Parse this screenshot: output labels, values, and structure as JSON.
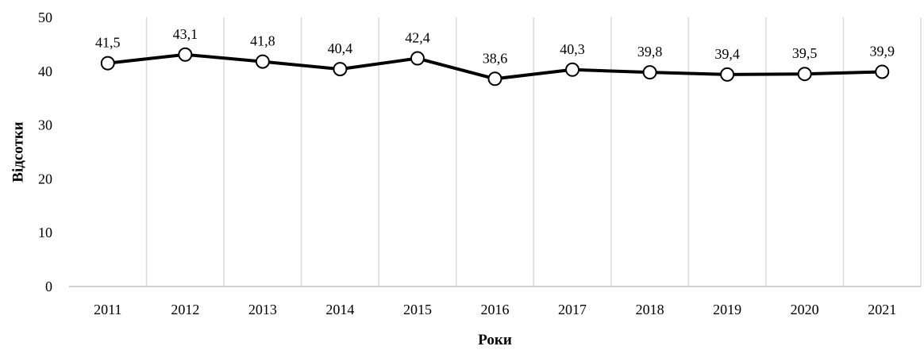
{
  "chart_data": {
    "type": "line",
    "categories": [
      "2011",
      "2012",
      "2013",
      "2014",
      "2015",
      "2016",
      "2017",
      "2018",
      "2019",
      "2020",
      "2021"
    ],
    "values": [
      41.5,
      43.1,
      41.8,
      40.4,
      42.4,
      38.6,
      40.3,
      39.8,
      39.4,
      39.5,
      39.9
    ],
    "data_labels": [
      "41,5",
      "43,1",
      "41,8",
      "40,4",
      "42,4",
      "38,6",
      "40,3",
      "39,8",
      "39,4",
      "39,5",
      "39,9"
    ],
    "y_ticks": [
      "0",
      "10",
      "20",
      "30",
      "40",
      "50"
    ],
    "xlabel": "Роки",
    "ylabel": "Відсотки",
    "ylim": [
      0,
      50
    ],
    "grid": "vertical",
    "legend": "none",
    "colors": {
      "line": "#000000",
      "marker_fill": "#ffffff",
      "grid": "#d9d9d9",
      "axis": "#bfbfbf"
    }
  }
}
